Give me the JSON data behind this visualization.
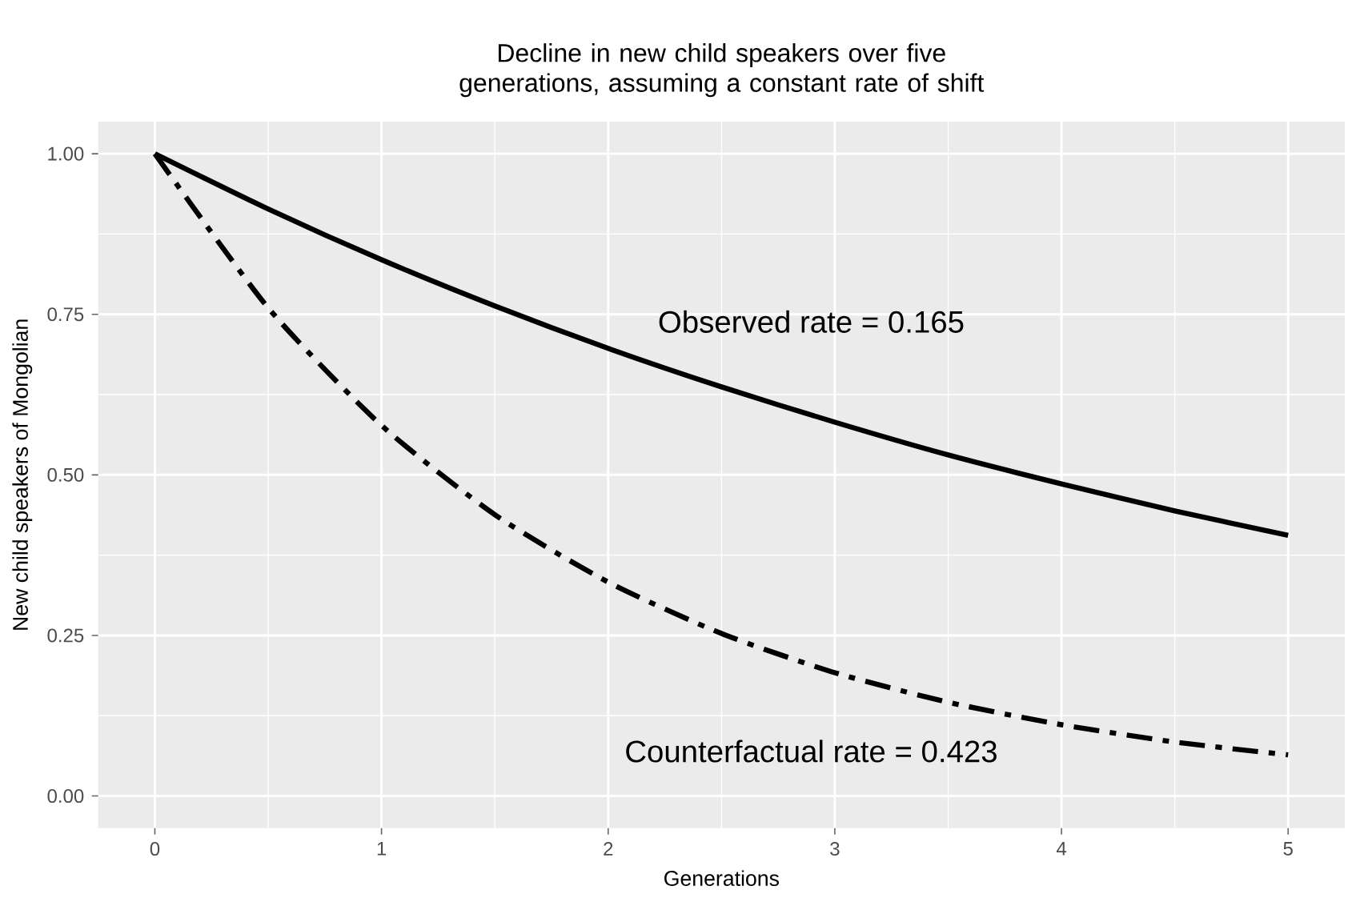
{
  "chart_data": {
    "type": "line",
    "title": "Decline in new child speakers over five generations, assuming a constant rate of shift",
    "xlabel": "Generations",
    "ylabel": "New child speakers of Mongolian",
    "x": [
      0,
      0.5,
      1,
      1.5,
      2,
      2.5,
      3,
      3.5,
      4,
      4.5,
      5
    ],
    "series": [
      {
        "color": "#000000",
        "line_style": "solid",
        "values": [
          1,
          0.914,
          0.835,
          0.763,
          0.697,
          0.637,
          0.582,
          0.531,
          0.486,
          0.444,
          0.406
        ]
      },
      {
        "color": "#000000",
        "line_style": "dashdot",
        "values": [
          1,
          0.76,
          0.577,
          0.438,
          0.333,
          0.253,
          0.192,
          0.146,
          0.111,
          0.084,
          0.064
        ]
      }
    ],
    "annotations": [
      "Observed rate = 0.165",
      "Counterfactual rate = 0.423"
    ],
    "xlim": [
      -0.25,
      5.25
    ],
    "ylim": [
      -0.05,
      1.05
    ],
    "xticks": [
      0,
      1,
      2,
      3,
      4,
      5
    ],
    "yticks": [
      {
        "value": 0,
        "label": "0.00"
      },
      {
        "value": 0.25,
        "label": "0.25"
      },
      {
        "value": 0.5,
        "label": "0.50"
      },
      {
        "value": 0.75,
        "label": "0.75"
      },
      {
        "value": 1,
        "label": "1.00"
      }
    ],
    "grid": true,
    "marker": "none"
  }
}
